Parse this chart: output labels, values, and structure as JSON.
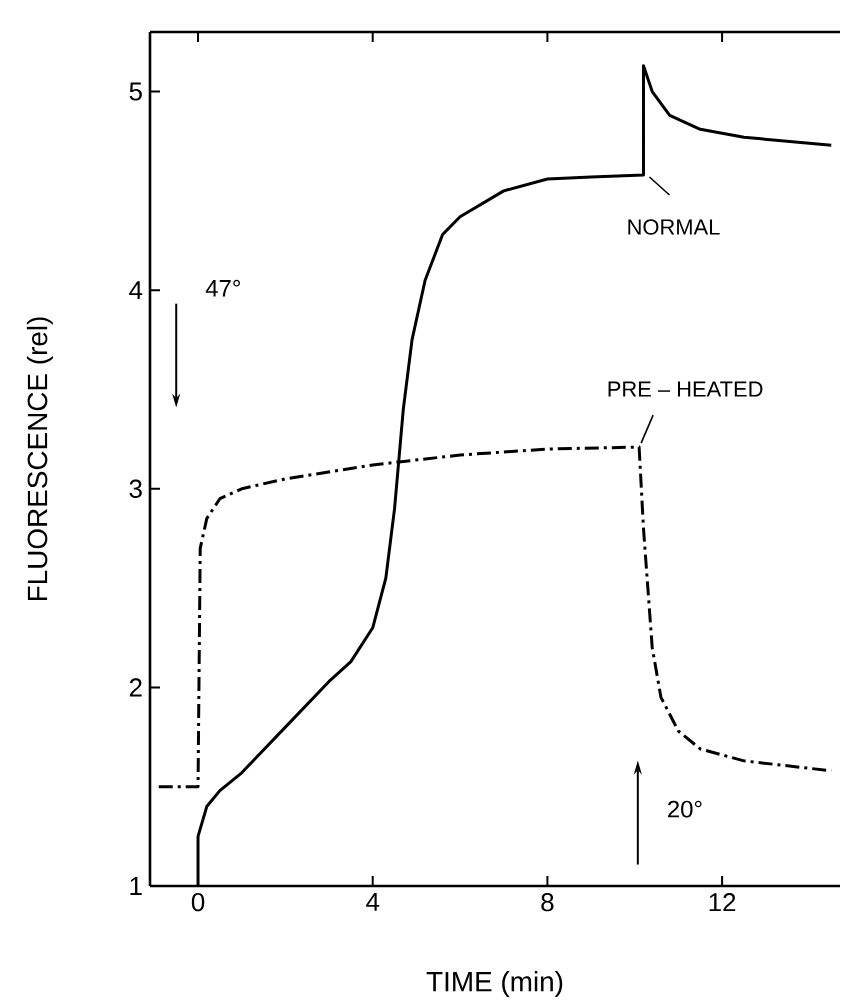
{
  "chart_data": {
    "type": "line",
    "xlabel": "TIME  (min)",
    "ylabel": "FLUORESCENCE  (rel)",
    "xlim": [
      -1.1,
      14.7
    ],
    "ylim": [
      1,
      5.3
    ],
    "xticks": [
      0,
      4,
      8,
      12
    ],
    "yticks": [
      1,
      2,
      3,
      4,
      5
    ],
    "grid": false,
    "marker": "none",
    "series": [
      {
        "name": "NORMAL",
        "color": "#000000",
        "line_style": "solid",
        "x": [
          0,
          0,
          0.2,
          0.5,
          1,
          2,
          3,
          3.5,
          4,
          4.3,
          4.5,
          4.7,
          4.9,
          5.2,
          5.6,
          6,
          7,
          8,
          9,
          10.2,
          10.2,
          10.4,
          10.8,
          11.5,
          12.5,
          14.5
        ],
        "values": [
          1,
          1.25,
          1.4,
          1.48,
          1.57,
          1.8,
          2.03,
          2.13,
          2.3,
          2.55,
          2.9,
          3.4,
          3.75,
          4.05,
          4.28,
          4.37,
          4.5,
          4.56,
          4.57,
          4.58,
          5.13,
          5.0,
          4.88,
          4.81,
          4.77,
          4.73
        ]
      },
      {
        "name": "PRE – HEATED",
        "color": "#000000",
        "line_style": "dashdotted",
        "x": [
          -0.9,
          0,
          0.05,
          0.2,
          0.5,
          1,
          2,
          4,
          6,
          8,
          10.1,
          10.2,
          10.4,
          10.6,
          11,
          11.5,
          12.5,
          14.5
        ],
        "values": [
          1.5,
          1.5,
          2.7,
          2.85,
          2.95,
          3.0,
          3.05,
          3.12,
          3.17,
          3.2,
          3.21,
          2.8,
          2.2,
          1.95,
          1.78,
          1.69,
          1.63,
          1.58
        ]
      }
    ],
    "annotations": [
      "47°",
      "20°"
    ]
  }
}
